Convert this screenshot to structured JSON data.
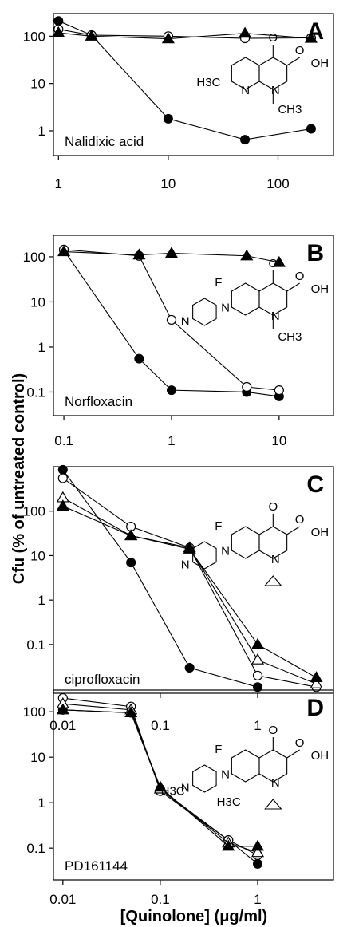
{
  "figure": {
    "y_axis_title": "Cfu (% of untreated control)",
    "x_axis_title_prefix": "[Quinolone] (",
    "x_axis_title_unit": "μg/ml",
    "x_axis_title_suffix": ")"
  },
  "chart_data": [
    {
      "type": "line",
      "panel_label": "A",
      "drug": "Nalidixic acid",
      "x_scale": "log",
      "y_scale": "log",
      "xlim": [
        0.9,
        320
      ],
      "ylim": [
        0.3,
        300
      ],
      "x_ticks": [
        1,
        10,
        100
      ],
      "x_tick_labels": [
        "1",
        "10",
        "100"
      ],
      "y_ticks": [
        1,
        10,
        100
      ],
      "y_tick_labels": [
        "1",
        "10",
        "100"
      ],
      "series": [
        {
          "marker": "filled-circle",
          "points": [
            [
              1,
              210
            ],
            [
              2,
              105
            ],
            [
              10,
              1.8
            ],
            [
              50,
              0.65
            ],
            [
              200,
              1.1
            ]
          ]
        },
        {
          "marker": "open-circle",
          "points": [
            [
              1,
              140
            ],
            [
              2,
              105
            ],
            [
              10,
              100
            ],
            [
              50,
              90
            ],
            [
              200,
              92
            ]
          ]
        },
        {
          "marker": "filled-triangle",
          "points": [
            [
              1,
              118
            ],
            [
              2,
              100
            ],
            [
              10,
              88
            ],
            [
              50,
              115
            ],
            [
              200,
              90
            ]
          ]
        }
      ]
    },
    {
      "type": "line",
      "panel_label": "B",
      "drug": "Norfloxacin",
      "x_scale": "log",
      "y_scale": "log",
      "xlim": [
        0.08,
        32
      ],
      "ylim": [
        0.03,
        300
      ],
      "x_ticks": [
        0.1,
        1,
        10
      ],
      "x_tick_labels": [
        "0.1",
        "1",
        "10"
      ],
      "y_ticks": [
        0.1,
        1,
        10,
        100
      ],
      "y_tick_labels": [
        "0.1",
        "1",
        "10",
        "100"
      ],
      "series": [
        {
          "marker": "filled-circle",
          "points": [
            [
              0.1,
              140
            ],
            [
              0.5,
              0.55
            ],
            [
              1,
              0.11
            ],
            [
              5,
              0.1
            ],
            [
              10,
              0.08
            ]
          ]
        },
        {
          "marker": "open-circle",
          "points": [
            [
              0.1,
              145
            ],
            [
              0.5,
              105
            ],
            [
              1,
              4
            ],
            [
              5,
              0.13
            ],
            [
              10,
              0.11
            ]
          ]
        },
        {
          "marker": "filled-triangle",
          "points": [
            [
              0.1,
              130
            ],
            [
              0.5,
              110
            ],
            [
              1,
              120
            ],
            [
              5,
              105
            ],
            [
              10,
              75
            ]
          ]
        }
      ]
    },
    {
      "type": "line",
      "panel_label": "C",
      "drug": "ciprofloxacin",
      "x_scale": "log",
      "y_scale": "log",
      "xlim": [
        0.008,
        6
      ],
      "ylim": [
        0.008,
        1000
      ],
      "x_ticks": [
        0.01,
        0.1,
        1
      ],
      "x_tick_labels": [
        "0.01",
        "0.1",
        "1"
      ],
      "y_ticks": [
        0.1,
        1,
        10,
        100
      ],
      "y_tick_labels": [
        "0.1",
        "1",
        "10",
        "100"
      ],
      "series": [
        {
          "marker": "filled-circle",
          "points": [
            [
              0.01,
              850
            ],
            [
              0.05,
              7
            ],
            [
              0.2,
              0.03
            ],
            [
              1,
              0.011
            ]
          ]
        },
        {
          "marker": "open-circle",
          "points": [
            [
              0.01,
              550
            ],
            [
              0.05,
              45
            ],
            [
              0.2,
              15
            ],
            [
              1,
              0.02
            ],
            [
              4,
              0.011
            ]
          ]
        },
        {
          "marker": "open-triangle",
          "points": [
            [
              0.01,
              200
            ],
            [
              0.05,
              28
            ],
            [
              0.2,
              15
            ],
            [
              1,
              0.045
            ],
            [
              4,
              0.013
            ]
          ]
        },
        {
          "marker": "filled-triangle",
          "points": [
            [
              0.01,
              130
            ],
            [
              0.05,
              28
            ],
            [
              0.2,
              14
            ],
            [
              1,
              0.1
            ],
            [
              4,
              0.018
            ]
          ]
        }
      ]
    },
    {
      "type": "line",
      "panel_label": "D",
      "drug": "PD161144",
      "x_scale": "log",
      "y_scale": "log",
      "xlim": [
        0.008,
        6
      ],
      "ylim": [
        0.02,
        300
      ],
      "x_ticks": [
        0.01,
        0.1,
        1
      ],
      "x_tick_labels": [
        "0.01",
        "0.1",
        "1"
      ],
      "y_ticks": [
        0.1,
        1,
        10,
        100
      ],
      "y_tick_labels": [
        "0.1",
        "1",
        "10",
        "100"
      ],
      "series": [
        {
          "marker": "filled-circle",
          "points": [
            [
              0.01,
              110
            ],
            [
              0.05,
              95
            ],
            [
              0.1,
              2
            ],
            [
              0.5,
              0.15
            ],
            [
              1,
              0.045
            ]
          ]
        },
        {
          "marker": "open-circle",
          "points": [
            [
              0.01,
              200
            ],
            [
              0.05,
              130
            ],
            [
              0.1,
              1.8
            ],
            [
              0.5,
              0.15
            ],
            [
              1,
              0.07
            ]
          ]
        },
        {
          "marker": "open-triangle",
          "points": [
            [
              0.01,
              150
            ],
            [
              0.05,
              110
            ],
            [
              0.1,
              2
            ],
            [
              0.5,
              0.13
            ],
            [
              1,
              0.08
            ]
          ]
        },
        {
          "marker": "filled-triangle",
          "points": [
            [
              0.01,
              110
            ],
            [
              0.05,
              95
            ],
            [
              0.1,
              2.2
            ],
            [
              0.5,
              0.11
            ],
            [
              1,
              0.11
            ]
          ]
        }
      ]
    }
  ],
  "structures": [
    {
      "panel": "A",
      "labels": [
        "O",
        "OH",
        "H3C",
        "N",
        "N",
        "CH3"
      ]
    },
    {
      "panel": "B",
      "labels": [
        "O",
        "OH",
        "F",
        "N",
        "N",
        "N",
        "CH3"
      ]
    },
    {
      "panel": "C",
      "labels": [
        "O",
        "OH",
        "F",
        "N",
        "N",
        "N"
      ]
    },
    {
      "panel": "D",
      "labels": [
        "O",
        "OH",
        "F",
        "N",
        "N",
        "N",
        "H3C",
        "H3C"
      ]
    }
  ]
}
